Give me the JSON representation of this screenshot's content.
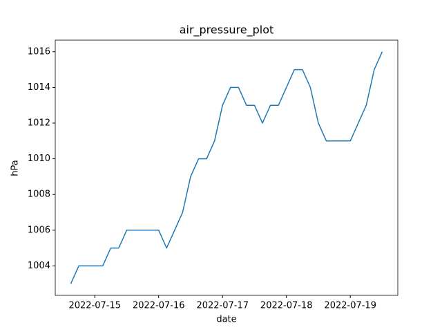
{
  "chart_data": {
    "type": "line",
    "title": "air_pressure_plot",
    "xlabel": "date",
    "ylabel": "hPa",
    "x": [
      "2022-07-14T15:00",
      "2022-07-14T18:00",
      "2022-07-14T21:00",
      "2022-07-15T00:00",
      "2022-07-15T03:00",
      "2022-07-15T06:00",
      "2022-07-15T09:00",
      "2022-07-15T12:00",
      "2022-07-15T15:00",
      "2022-07-15T18:00",
      "2022-07-15T21:00",
      "2022-07-16T00:00",
      "2022-07-16T03:00",
      "2022-07-16T06:00",
      "2022-07-16T09:00",
      "2022-07-16T12:00",
      "2022-07-16T15:00",
      "2022-07-16T18:00",
      "2022-07-16T21:00",
      "2022-07-17T00:00",
      "2022-07-17T03:00",
      "2022-07-17T06:00",
      "2022-07-17T09:00",
      "2022-07-17T12:00",
      "2022-07-17T15:00",
      "2022-07-17T18:00",
      "2022-07-17T21:00",
      "2022-07-18T00:00",
      "2022-07-18T03:00",
      "2022-07-18T06:00",
      "2022-07-18T09:00",
      "2022-07-18T12:00",
      "2022-07-18T15:00",
      "2022-07-18T18:00",
      "2022-07-18T21:00",
      "2022-07-19T00:00",
      "2022-07-19T03:00",
      "2022-07-19T06:00",
      "2022-07-19T09:00",
      "2022-07-19T12:00"
    ],
    "values": [
      1003,
      1004,
      1004,
      1004,
      1004,
      1005,
      1005,
      1006,
      1006,
      1006,
      1006,
      1006,
      1005,
      1006,
      1007,
      1009,
      1010,
      1010,
      1011,
      1013,
      1014,
      1014,
      1013,
      1013,
      1012,
      1013,
      1013,
      1014,
      1015,
      1015,
      1014,
      1012,
      1011,
      1011,
      1011,
      1011,
      1012,
      1013,
      1015,
      1016
    ],
    "color": "#1f77b4",
    "xlim": [
      "2022-07-14T09:09",
      "2022-07-19T17:51"
    ],
    "xticks": [
      "2022-07-15",
      "2022-07-16",
      "2022-07-17",
      "2022-07-18",
      "2022-07-19"
    ],
    "ylim": [
      1002.35,
      1016.65
    ],
    "yticks": [
      1004,
      1006,
      1008,
      1010,
      1012,
      1014,
      1016
    ]
  }
}
